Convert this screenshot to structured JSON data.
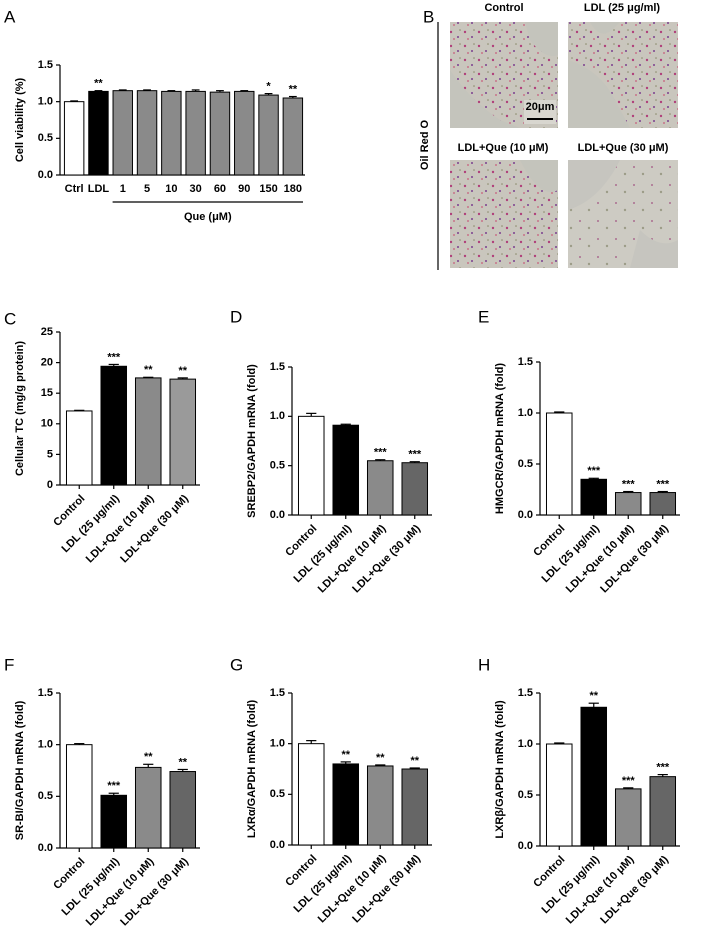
{
  "chart_data": [
    {
      "type": "bar",
      "panel": "A",
      "ylabel": "Cell viability (%)",
      "group_label": "Que (μM)",
      "categories": [
        "Ctrl",
        "LDL",
        "1",
        "5",
        "10",
        "30",
        "60",
        "90",
        "150",
        "180"
      ],
      "values": [
        1.0,
        1.14,
        1.15,
        1.15,
        1.14,
        1.14,
        1.13,
        1.14,
        1.09,
        1.05
      ],
      "errors": [
        0.01,
        0.01,
        0.01,
        0.01,
        0.01,
        0.02,
        0.02,
        0.01,
        0.02,
        0.02
      ],
      "significance": [
        null,
        "**",
        null,
        null,
        null,
        null,
        null,
        null,
        "*",
        "**"
      ],
      "colors": [
        "#ffffff",
        "#000000",
        "#8a8a8a",
        "#8a8a8a",
        "#8a8a8a",
        "#8a8a8a",
        "#8a8a8a",
        "#8a8a8a",
        "#8a8a8a",
        "#8a8a8a"
      ],
      "ylim": [
        0,
        1.5
      ],
      "yticks": [
        {
          "value": 0,
          "label": "0.0"
        },
        {
          "value": 0.5,
          "label": "0.5"
        },
        {
          "value": 1,
          "label": "1.0"
        },
        {
          "value": 1.5,
          "label": "1.5"
        }
      ]
    },
    {
      "type": "bar",
      "panel": "C",
      "ylabel": "Cellular TC (mg/g protein)",
      "categories": [
        "Control",
        "LDL (25 μg/ml)",
        "LDL+Que (10 μM)",
        "LDL+Que (30 μM)"
      ],
      "values": [
        12.1,
        19.4,
        17.5,
        17.3
      ],
      "errors": [
        0.1,
        0.3,
        0.1,
        0.2
      ],
      "significance": [
        null,
        "***",
        "**",
        "**"
      ],
      "colors": [
        "#ffffff",
        "#000000",
        "#8a8a8a",
        "#9a9a9a"
      ],
      "ylim": [
        0,
        25
      ],
      "yticks": [
        0,
        5,
        10,
        15,
        20,
        25
      ]
    },
    {
      "type": "bar",
      "panel": "D",
      "ylabel": "SREBP2/GAPDH mRNA (fold)",
      "categories": [
        "Control",
        "LDL (25 μg/ml)",
        "LDL+Que (10 μM)",
        "LDL+Que (30 μM)"
      ],
      "values": [
        1.0,
        0.91,
        0.55,
        0.53
      ],
      "errors": [
        0.03,
        0.01,
        0.01,
        0.01
      ],
      "significance": [
        null,
        null,
        "***",
        "***"
      ],
      "colors": [
        "#ffffff",
        "#000000",
        "#8a8a8a",
        "#666666"
      ],
      "ylim": [
        0,
        1.5
      ],
      "yticks": [
        {
          "value": 0,
          "label": "0.0"
        },
        {
          "value": 0.5,
          "label": "0.5"
        },
        {
          "value": 1,
          "label": "1.0"
        },
        {
          "value": 1.5,
          "label": "1.5"
        }
      ]
    },
    {
      "type": "bar",
      "panel": "E",
      "ylabel": "HMGCR/GAPDH mRNA (fold)",
      "categories": [
        "Control",
        "LDL (25 μg/ml)",
        "LDL+Que (10 μM)",
        "LDL+Que (30 μM)"
      ],
      "values": [
        1.0,
        0.35,
        0.22,
        0.22
      ],
      "errors": [
        0.01,
        0.01,
        0.01,
        0.01
      ],
      "significance": [
        null,
        "***",
        "***",
        "***"
      ],
      "colors": [
        "#ffffff",
        "#000000",
        "#8a8a8a",
        "#666666"
      ],
      "ylim": [
        0,
        1.5
      ],
      "yticks": [
        {
          "value": 0,
          "label": "0.0"
        },
        {
          "value": 0.5,
          "label": "0.5"
        },
        {
          "value": 1,
          "label": "1.0"
        },
        {
          "value": 1.5,
          "label": "1.5"
        }
      ]
    },
    {
      "type": "bar",
      "panel": "F",
      "ylabel": "SR-BI/GAPDH mRNA (fold)",
      "categories": [
        "Control",
        "LDL (25 μg/ml)",
        "LDL+Que (10 μM)",
        "LDL+Que (30 μM)"
      ],
      "values": [
        1.0,
        0.51,
        0.78,
        0.74
      ],
      "errors": [
        0.01,
        0.02,
        0.03,
        0.02
      ],
      "significance": [
        null,
        "***",
        "**",
        "**"
      ],
      "colors": [
        "#ffffff",
        "#000000",
        "#8a8a8a",
        "#666666"
      ],
      "ylim": [
        0,
        1.5
      ],
      "yticks": [
        {
          "value": 0,
          "label": "0.0"
        },
        {
          "value": 0.5,
          "label": "0.5"
        },
        {
          "value": 1,
          "label": "1.0"
        },
        {
          "value": 1.5,
          "label": "1.5"
        }
      ]
    },
    {
      "type": "bar",
      "panel": "G",
      "ylabel": "LXRα/GAPDH mRNA (fold)",
      "categories": [
        "Control",
        "LDL (25 μg/ml)",
        "LDL+Que (10 μM)",
        "LDL+Que (30 μM)"
      ],
      "values": [
        1.0,
        0.8,
        0.78,
        0.75
      ],
      "errors": [
        0.03,
        0.02,
        0.01,
        0.01
      ],
      "significance": [
        null,
        "**",
        "**",
        "**"
      ],
      "colors": [
        "#ffffff",
        "#000000",
        "#8a8a8a",
        "#666666"
      ],
      "ylim": [
        0,
        1.5
      ],
      "yticks": [
        {
          "value": 0,
          "label": "0.0"
        },
        {
          "value": 0.5,
          "label": "0.5"
        },
        {
          "value": 1,
          "label": "1.0"
        },
        {
          "value": 1.5,
          "label": "1.5"
        }
      ]
    },
    {
      "type": "bar",
      "panel": "H",
      "ylabel": "LXRβ/GAPDH mRNA (fold)",
      "categories": [
        "Control",
        "LDL (25 μg/ml)",
        "LDL+Que (10 μM)",
        "LDL+Que (30 μM)"
      ],
      "values": [
        1.0,
        1.36,
        0.56,
        0.68
      ],
      "errors": [
        0.01,
        0.04,
        0.01,
        0.02
      ],
      "significance": [
        null,
        "**",
        "***",
        "***"
      ],
      "colors": [
        "#ffffff",
        "#000000",
        "#8a8a8a",
        "#666666"
      ],
      "ylim": [
        0,
        1.5
      ],
      "yticks": [
        {
          "value": 0,
          "label": "0.0"
        },
        {
          "value": 0.5,
          "label": "0.5"
        },
        {
          "value": 1,
          "label": "1.0"
        },
        {
          "value": 1.5,
          "label": "1.5"
        }
      ]
    }
  ],
  "image_panel": {
    "panel": "B",
    "stain": "Oil Red O",
    "scale_bar": "20μm",
    "labels": [
      "Control",
      "LDL (25 μg/ml)",
      "LDL+Que (10 μM)",
      "LDL+Que (30 μM)"
    ]
  }
}
